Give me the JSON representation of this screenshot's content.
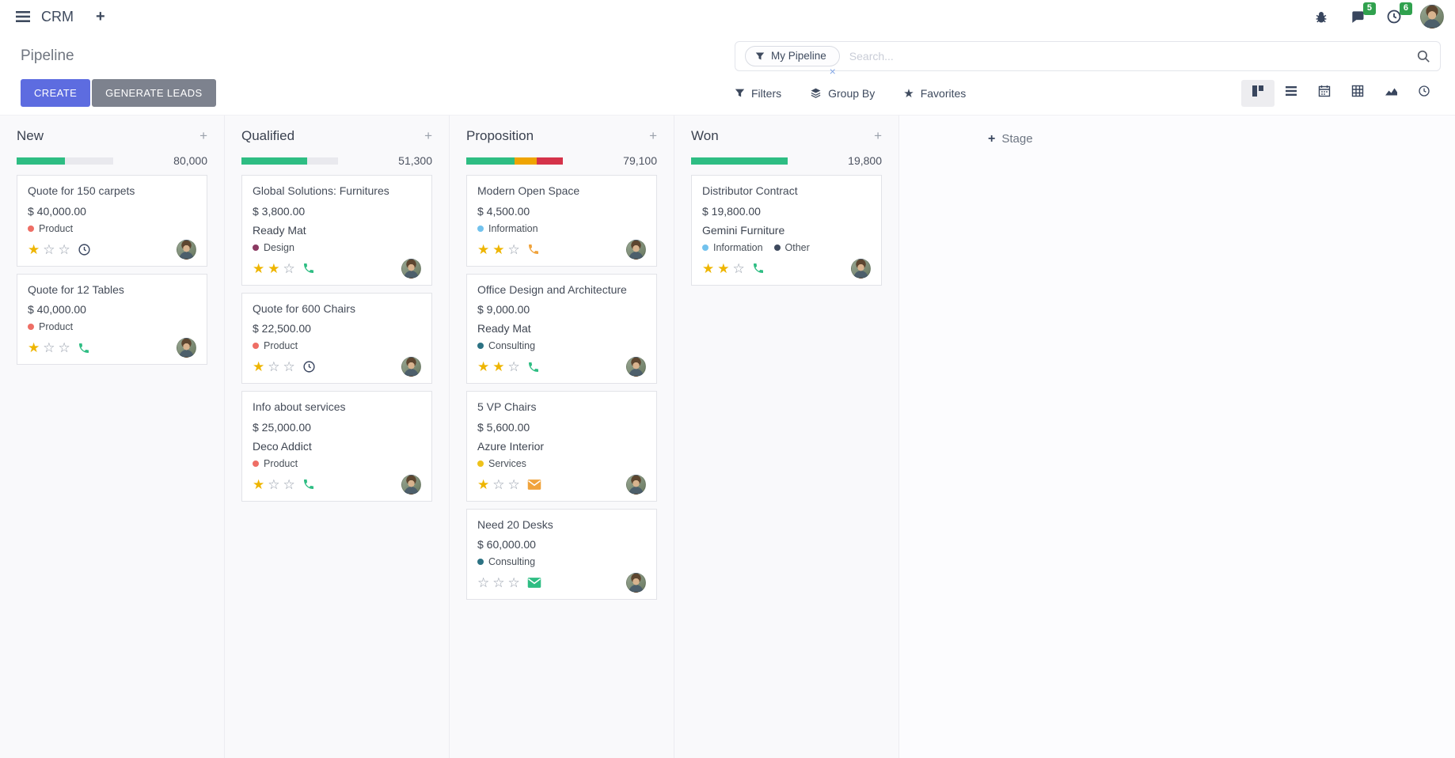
{
  "topbar": {
    "app_name": "CRM",
    "messages_badge": "5",
    "activities_badge": "6",
    "badge_color": "#30a14e"
  },
  "control_panel": {
    "title": "Pipeline",
    "create_label": "CREATE",
    "generate_leads_label": "GENERATE LEADS",
    "create_color": "#5d6ce0",
    "generate_color": "#7d828e",
    "search": {
      "facet": "My Pipeline",
      "remove_facet": "×",
      "placeholder": "Search..."
    },
    "filters_label": "Filters",
    "group_by_label": "Group By",
    "favorites_label": "Favorites",
    "view_switcher": [
      "kanban",
      "list",
      "calendar",
      "pivot",
      "graph",
      "activity"
    ],
    "active_view": "kanban"
  },
  "kanban": {
    "add_stage_label": "Stage",
    "columns": [
      {
        "name": "New",
        "counter": "80,000",
        "progress": [
          {
            "color": "#2ebd83",
            "pct": 50
          }
        ],
        "cards": [
          {
            "title": "Quote for 150 carpets",
            "amount": "$ 40,000.00",
            "tags": [
              {
                "label": "Product",
                "color": "#ee6e65"
              }
            ],
            "stars": 1,
            "icon": {
              "type": "clock",
              "color": "#3a4660"
            }
          },
          {
            "title": "Quote for 12 Tables",
            "amount": "$ 40,000.00",
            "tags": [
              {
                "label": "Product",
                "color": "#ee6e65"
              }
            ],
            "stars": 1,
            "icon": {
              "type": "phone",
              "color": "#2ebd83"
            }
          }
        ]
      },
      {
        "name": "Qualified",
        "counter": "51,300",
        "progress": [
          {
            "color": "#2ebd83",
            "pct": 68
          }
        ],
        "cards": [
          {
            "title": "Global Solutions: Furnitures",
            "amount": "$ 3,800.00",
            "company": "Ready Mat",
            "tags": [
              {
                "label": "Design",
                "color": "#8b3a62"
              }
            ],
            "stars": 2,
            "icon": {
              "type": "phone",
              "color": "#2ebd83"
            }
          },
          {
            "title": "Quote for 600 Chairs",
            "amount": "$ 22,500.00",
            "tags": [
              {
                "label": "Product",
                "color": "#ee6e65"
              }
            ],
            "stars": 1,
            "icon": {
              "type": "clock",
              "color": "#3a4660"
            }
          },
          {
            "title": "Info about services",
            "amount": "$ 25,000.00",
            "company": "Deco Addict",
            "tags": [
              {
                "label": "Product",
                "color": "#ee6e65"
              }
            ],
            "stars": 1,
            "icon": {
              "type": "phone",
              "color": "#2ebd83"
            }
          }
        ]
      },
      {
        "name": "Proposition",
        "counter": "79,100",
        "progress": [
          {
            "color": "#2ebd83",
            "pct": 50
          },
          {
            "color": "#efa402",
            "pct": 23
          },
          {
            "color": "#d5334a",
            "pct": 27
          }
        ],
        "cards": [
          {
            "title": "Modern Open Space",
            "amount": "$ 4,500.00",
            "tags": [
              {
                "label": "Information",
                "color": "#72c2ed"
              }
            ],
            "stars": 2,
            "icon": {
              "type": "phone",
              "color": "#f0a33c"
            }
          },
          {
            "title": "Office Design and Architecture",
            "amount": "$ 9,000.00",
            "company": "Ready Mat",
            "tags": [
              {
                "label": "Consulting",
                "color": "#2c7283"
              }
            ],
            "stars": 2,
            "icon": {
              "type": "phone",
              "color": "#2ebd83"
            }
          },
          {
            "title": "5 VP Chairs",
            "amount": "$ 5,600.00",
            "company": "Azure Interior",
            "tags": [
              {
                "label": "Services",
                "color": "#eec21b"
              }
            ],
            "stars": 1,
            "icon": {
              "type": "envelope",
              "color": "#f0a33c"
            }
          },
          {
            "title": "Need 20 Desks",
            "amount": "$ 60,000.00",
            "tags": [
              {
                "label": "Consulting",
                "color": "#2c7283"
              }
            ],
            "stars": 0,
            "icon": {
              "type": "envelope",
              "color": "#2ebd83"
            }
          }
        ]
      },
      {
        "name": "Won",
        "counter": "19,800",
        "progress": [
          {
            "color": "#2ebd83",
            "pct": 100
          }
        ],
        "cards": [
          {
            "title": "Distributor Contract",
            "amount": "$ 19,800.00",
            "company": "Gemini Furniture",
            "tags": [
              {
                "label": "Information",
                "color": "#72c2ed"
              },
              {
                "label": "Other",
                "color": "#3e4a5e"
              }
            ],
            "stars": 2,
            "icon": {
              "type": "phone",
              "color": "#2ebd83"
            }
          }
        ]
      }
    ]
  }
}
